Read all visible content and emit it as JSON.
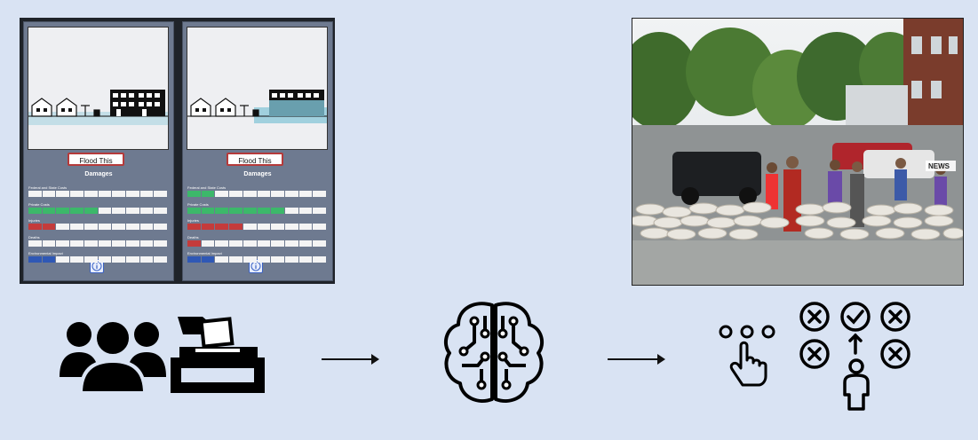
{
  "game_panel": {
    "flood_button_label": "Flood This",
    "damages_title": "Damages",
    "categories": [
      {
        "label": "Federal and State Costs"
      },
      {
        "label": "Private Costs"
      },
      {
        "label": "Injuries"
      },
      {
        "label": "Deaths"
      },
      {
        "label": "Environmental Impact"
      }
    ],
    "segments_per_bar": 10,
    "phones": [
      {
        "filled": [
          0,
          5,
          2,
          0,
          2
        ],
        "colors": [
          "#3cb86a",
          "#3cb86a",
          "#c43b3b",
          "#c43b3b",
          "#2f58b5"
        ]
      },
      {
        "filled": [
          2,
          7,
          4,
          1,
          2
        ],
        "colors": [
          "#3cb86a",
          "#3cb86a",
          "#c43b3b",
          "#c43b3b",
          "#2f58b5"
        ]
      }
    ]
  },
  "photo": {
    "sign_text": "NEWS"
  },
  "pipeline": {
    "icons": [
      "crowd-icon",
      "ballot-box-icon",
      "ai-brain-icon",
      "touch-gesture-icon",
      "decision-options-icon",
      "person-icon"
    ]
  }
}
